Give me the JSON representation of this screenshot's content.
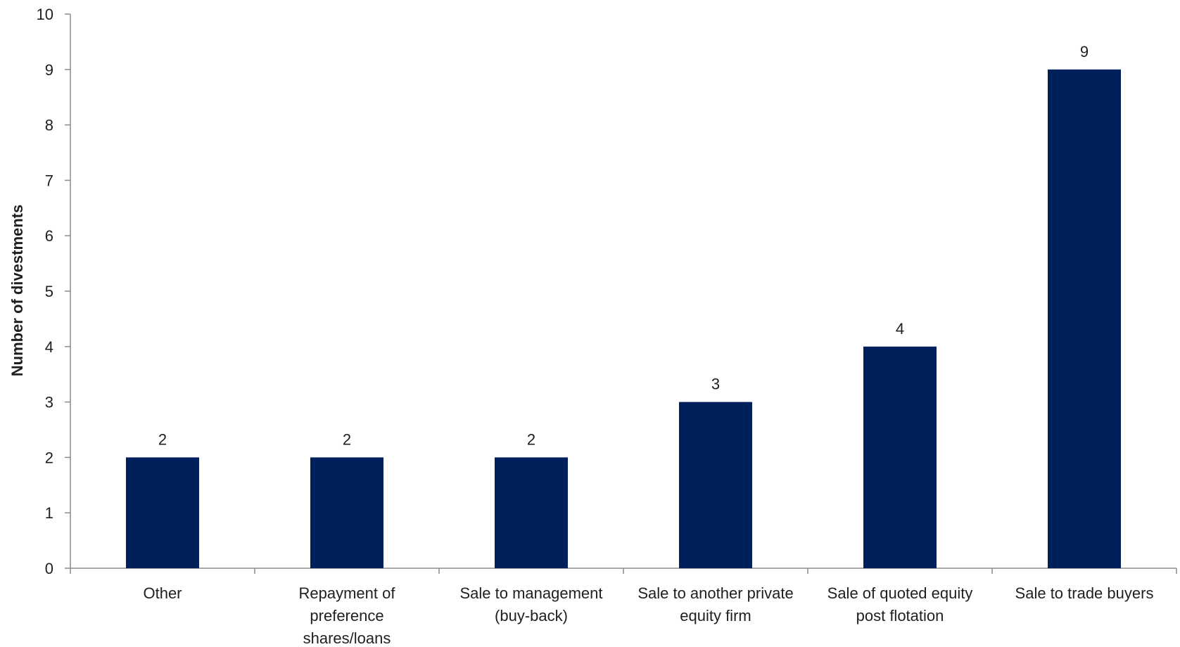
{
  "chart_data": {
    "type": "bar",
    "categories": [
      [
        "Other"
      ],
      [
        "Repayment of",
        "preference",
        "shares/loans"
      ],
      [
        "Sale to management",
        "(buy-back)"
      ],
      [
        "Sale to another private",
        "equity firm"
      ],
      [
        "Sale of quoted equity",
        "post flotation"
      ],
      [
        "Sale to trade buyers"
      ]
    ],
    "values": [
      2,
      2,
      2,
      3,
      4,
      9
    ],
    "ylabel": "Number of divestments",
    "xlabel": "",
    "ylim": [
      0,
      10
    ],
    "yticks": [
      0,
      1,
      2,
      3,
      4,
      5,
      6,
      7,
      8,
      9,
      10
    ],
    "show_data_labels": true,
    "grid": false,
    "legend": "none",
    "colors": {
      "bar": "#00205B",
      "axis": "#8C8C8C",
      "text": "#1F1F1F"
    }
  }
}
